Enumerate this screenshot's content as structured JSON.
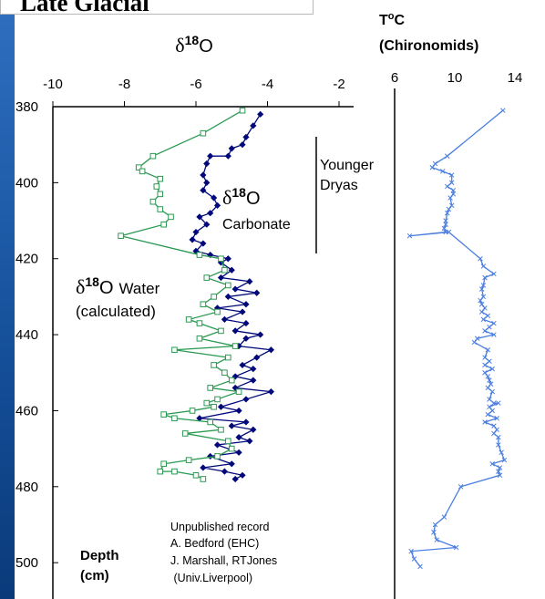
{
  "page_title": "Late Glacial",
  "chart_data": [
    {
      "type": "line",
      "title": "δ18O",
      "title_parts": {
        "symbol": "δ",
        "sup": "18",
        "letter": "O"
      },
      "xlim": [
        -10,
        -2
      ],
      "x_ticks": [
        -10,
        -8,
        -6,
        -4,
        -2
      ],
      "ylim": [
        380,
        510
      ],
      "y_ticks": [
        380,
        400,
        420,
        440,
        460,
        480,
        500
      ],
      "y_axis_inverted": true,
      "ylabel": [
        "Depth",
        "(cm)"
      ],
      "series": [
        {
          "name": "δ18O Carbonate",
          "color": "#00087a",
          "marker": "diamond-filled",
          "points": [
            [
              -4.2,
              382
            ],
            [
              -4.4,
              385
            ],
            [
              -4.6,
              388
            ],
            [
              -4.7,
              390
            ],
            [
              -5.0,
              391
            ],
            [
              -5.1,
              393
            ],
            [
              -5.6,
              393
            ],
            [
              -5.7,
              395
            ],
            [
              -5.8,
              398
            ],
            [
              -5.7,
              400
            ],
            [
              -5.8,
              402
            ],
            [
              -5.5,
              404
            ],
            [
              -5.4,
              406
            ],
            [
              -5.6,
              408
            ],
            [
              -5.9,
              409
            ],
            [
              -5.7,
              411
            ],
            [
              -6.0,
              413
            ],
            [
              -6.1,
              415
            ],
            [
              -5.8,
              416
            ],
            [
              -6.0,
              418
            ],
            [
              -5.6,
              419
            ],
            [
              -5.1,
              420
            ],
            [
              -5.3,
              421
            ],
            [
              -5.0,
              423
            ],
            [
              -5.3,
              425
            ],
            [
              -4.5,
              426
            ],
            [
              -4.9,
              428
            ],
            [
              -4.3,
              429
            ],
            [
              -5.1,
              430
            ],
            [
              -4.6,
              432
            ],
            [
              -5.4,
              433
            ],
            [
              -4.7,
              434
            ],
            [
              -5.2,
              436
            ],
            [
              -4.6,
              437
            ],
            [
              -4.9,
              439
            ],
            [
              -4.2,
              440
            ],
            [
              -4.6,
              441
            ],
            [
              -4.8,
              443
            ],
            [
              -3.9,
              444
            ],
            [
              -4.3,
              446
            ],
            [
              -4.7,
              448
            ],
            [
              -4.4,
              449
            ],
            [
              -4.9,
              451
            ],
            [
              -4.4,
              452
            ],
            [
              -4.9,
              454
            ],
            [
              -3.9,
              455
            ],
            [
              -4.6,
              457
            ],
            [
              -5.3,
              459
            ],
            [
              -4.8,
              460
            ],
            [
              -5.9,
              462
            ],
            [
              -4.6,
              463
            ],
            [
              -5.0,
              464
            ],
            [
              -4.4,
              465
            ],
            [
              -4.8,
              467
            ],
            [
              -4.5,
              468
            ],
            [
              -5.4,
              469
            ],
            [
              -4.8,
              471
            ],
            [
              -5.6,
              472
            ],
            [
              -5.0,
              474
            ],
            [
              -5.8,
              475
            ],
            [
              -5.2,
              476
            ],
            [
              -4.7,
              477
            ],
            [
              -4.9,
              478
            ]
          ]
        },
        {
          "name": "δ18O Water (calculated)",
          "color": "#2a9a52",
          "marker": "square-open",
          "points": [
            [
              -4.7,
              381
            ],
            [
              -5.8,
              387
            ],
            [
              -7.2,
              393
            ],
            [
              -7.6,
              396
            ],
            [
              -7.5,
              397
            ],
            [
              -7.0,
              399
            ],
            [
              -7.1,
              401
            ],
            [
              -7.0,
              403
            ],
            [
              -7.2,
              405
            ],
            [
              -7.0,
              407
            ],
            [
              -6.7,
              409
            ],
            [
              -6.9,
              411
            ],
            [
              -8.1,
              414
            ],
            [
              -5.9,
              419
            ],
            [
              -5.3,
              420
            ],
            [
              -5.2,
              423
            ],
            [
              -5.7,
              425
            ],
            [
              -5.1,
              427
            ],
            [
              -5.5,
              430
            ],
            [
              -5.8,
              432
            ],
            [
              -5.4,
              434
            ],
            [
              -6.2,
              436
            ],
            [
              -5.9,
              437
            ],
            [
              -5.3,
              439
            ],
            [
              -5.9,
              441
            ],
            [
              -4.9,
              443
            ],
            [
              -6.6,
              444
            ],
            [
              -5.1,
              446
            ],
            [
              -5.5,
              448
            ],
            [
              -5.2,
              450
            ],
            [
              -5.0,
              452
            ],
            [
              -5.6,
              454
            ],
            [
              -4.8,
              455
            ],
            [
              -5.4,
              457
            ],
            [
              -5.7,
              458
            ],
            [
              -5.5,
              459
            ],
            [
              -6.1,
              460
            ],
            [
              -6.9,
              461
            ],
            [
              -6.6,
              462
            ],
            [
              -5.6,
              463
            ],
            [
              -5.3,
              465
            ],
            [
              -6.3,
              466
            ],
            [
              -5.1,
              468
            ],
            [
              -5.0,
              470
            ],
            [
              -5.4,
              472
            ],
            [
              -6.2,
              473
            ],
            [
              -6.9,
              474
            ],
            [
              -7.0,
              476
            ],
            [
              -6.6,
              476
            ],
            [
              -6.0,
              477
            ],
            [
              -5.8,
              478
            ]
          ]
        }
      ],
      "annotations": [
        {
          "text_symbol": "δ",
          "text_sup": "18",
          "text_letter": "O",
          "text_line2": "Carbonate"
        },
        {
          "text_symbol": "δ",
          "text_sup": "18",
          "text_letter": "O",
          "text_word": "Water",
          "text_line2": "(calculated)"
        },
        {
          "text": [
            "Younger",
            "Dryas"
          ]
        },
        {
          "text": [
            "Unpublished record",
            "A. Bedford (EHC)",
            "J.  Marshall, RTJones",
            " (Univ.Liverpool)"
          ]
        }
      ]
    },
    {
      "type": "line",
      "title": [
        "T",
        "o",
        "C",
        "(Chironomids)"
      ],
      "xlim": [
        6,
        16
      ],
      "x_ticks": [
        6,
        10,
        14
      ],
      "ylim": [
        380,
        510
      ],
      "y_axis_inverted": true,
      "series": [
        {
          "name": "",
          "color": "#4a7ee0",
          "marker": "x",
          "points": [
            [
              13.2,
              381
            ],
            [
              9.5,
              393
            ],
            [
              8.7,
              395
            ],
            [
              8.5,
              396
            ],
            [
              9.2,
              397
            ],
            [
              9.8,
              398
            ],
            [
              9.8,
              400
            ],
            [
              9.5,
              401
            ],
            [
              9.9,
              402
            ],
            [
              9.9,
              403
            ],
            [
              9.7,
              404
            ],
            [
              9.8,
              406
            ],
            [
              9.6,
              407
            ],
            [
              9.5,
              408
            ],
            [
              9.4,
              410
            ],
            [
              9.4,
              411
            ],
            [
              9.3,
              412
            ],
            [
              9.4,
              413
            ],
            [
              7.0,
              414
            ],
            [
              9.6,
              413
            ],
            [
              11.7,
              420
            ],
            [
              11.9,
              422
            ],
            [
              12.6,
              424
            ],
            [
              12.0,
              425
            ],
            [
              11.9,
              427
            ],
            [
              11.8,
              428
            ],
            [
              11.9,
              430
            ],
            [
              11.7,
              431
            ],
            [
              11.8,
              432
            ],
            [
              12.0,
              433
            ],
            [
              11.8,
              434
            ],
            [
              12.2,
              435
            ],
            [
              11.9,
              436
            ],
            [
              12.6,
              437
            ],
            [
              12.3,
              438
            ],
            [
              12.0,
              439
            ],
            [
              12.6,
              440
            ],
            [
              11.5,
              441
            ],
            [
              11.3,
              442
            ],
            [
              12.2,
              444
            ],
            [
              12.0,
              446
            ],
            [
              12.3,
              447
            ],
            [
              12.0,
              448
            ],
            [
              12.5,
              449
            ],
            [
              12.0,
              450
            ],
            [
              12.2,
              451
            ],
            [
              12.3,
              452
            ],
            [
              12.4,
              453
            ],
            [
              12.2,
              454
            ],
            [
              12.5,
              455
            ],
            [
              12.3,
              457
            ],
            [
              12.6,
              458
            ],
            [
              12.9,
              458
            ],
            [
              12.3,
              459
            ],
            [
              12.5,
              460
            ],
            [
              12.2,
              461
            ],
            [
              12.8,
              462
            ],
            [
              12.0,
              463
            ],
            [
              12.6,
              464
            ],
            [
              12.8,
              465
            ],
            [
              12.6,
              466
            ],
            [
              12.9,
              467
            ],
            [
              12.9,
              469
            ],
            [
              13.1,
              471
            ],
            [
              13.3,
              473
            ],
            [
              12.5,
              474
            ],
            [
              13.0,
              475
            ],
            [
              12.9,
              476
            ],
            [
              13.0,
              477
            ],
            [
              10.4,
              480
            ],
            [
              9.3,
              488
            ],
            [
              8.7,
              490
            ],
            [
              8.6,
              492
            ],
            [
              8.8,
              494
            ],
            [
              10.1,
              496
            ],
            [
              7.1,
              497
            ],
            [
              7.3,
              499
            ],
            [
              7.7,
              501
            ]
          ]
        }
      ]
    }
  ]
}
